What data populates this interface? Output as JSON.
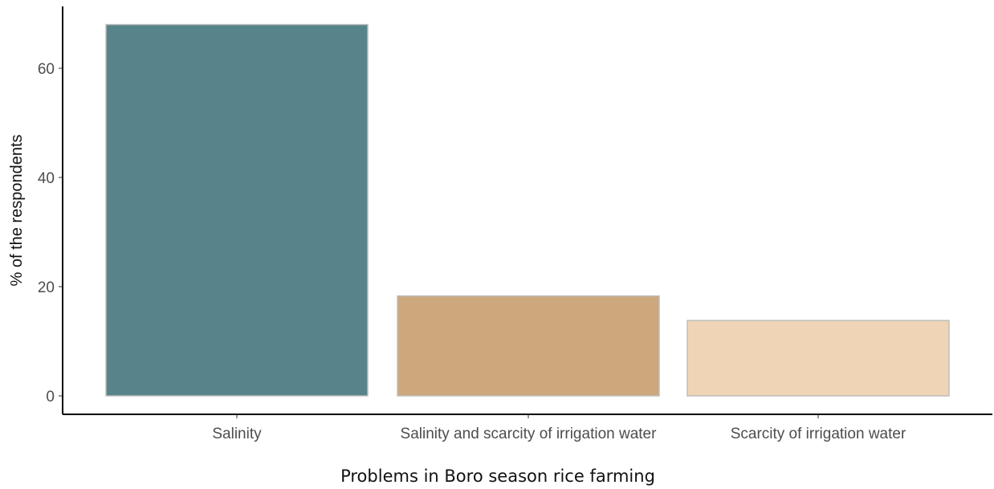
{
  "chart_data": {
    "type": "bar",
    "categories": [
      "Salinity",
      "Salinity and scarcity of irrigation water",
      "Scarcity of irrigation water"
    ],
    "values": [
      68,
      18.3,
      13.8
    ],
    "xlabel": "Problems in Boro season rice farming",
    "ylabel": "% of the respondents",
    "ylim": [
      0,
      72
    ],
    "yticks": [
      0,
      20,
      40,
      60
    ],
    "colors": [
      "#56848a",
      "#cca87c",
      "#efd5b5"
    ],
    "bar_outline_color": "#bdbdbd",
    "grid": false,
    "legend": "none"
  }
}
